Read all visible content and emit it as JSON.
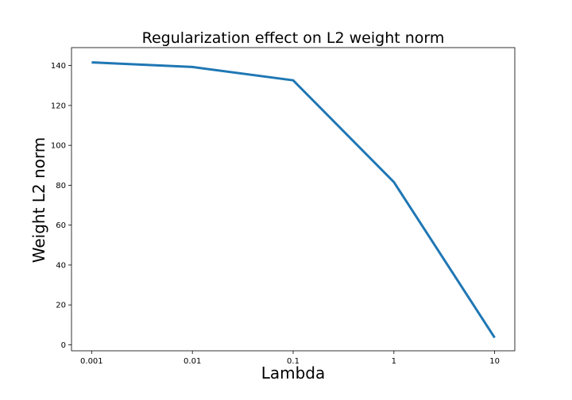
{
  "chart_data": {
    "type": "line",
    "title": "Regularization effect on L2 weight norm",
    "xlabel": "Lambda",
    "ylabel": "Weight L2 norm",
    "x_scale": "log",
    "x": [
      0.001,
      0.01,
      0.1,
      1,
      10
    ],
    "x_tick_labels": [
      "0.001",
      "0.01",
      "0.1",
      "1",
      "10"
    ],
    "y_ticks": [
      0,
      20,
      40,
      60,
      80,
      100,
      120,
      140
    ],
    "y_tick_labels": [
      "0",
      "20",
      "40",
      "60",
      "80",
      "100",
      "120",
      "140"
    ],
    "series": [
      {
        "values": [
          141.6,
          139.3,
          132.6,
          81.6,
          3.6
        ],
        "color": "#1f77b4"
      }
    ],
    "ylim": [
      -3,
      149
    ],
    "grid": false,
    "legend": "none"
  }
}
